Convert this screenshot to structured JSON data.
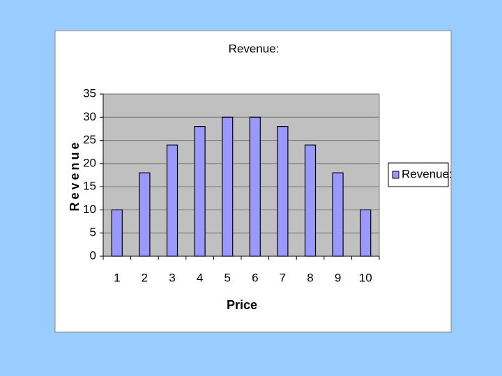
{
  "chart_data": {
    "type": "bar",
    "title": "Revenue:",
    "x_label": "Price",
    "y_label": "Revenue",
    "categories": [
      "1",
      "2",
      "3",
      "4",
      "5",
      "6",
      "7",
      "8",
      "9",
      "10"
    ],
    "series": [
      {
        "name": "Revenue:",
        "color": "#9999ff",
        "values": [
          10,
          18,
          24,
          28,
          30,
          30,
          28,
          24,
          18,
          10
        ]
      }
    ],
    "ylim": [
      0,
      35
    ],
    "yticks": [
      0,
      5,
      10,
      15,
      20,
      25,
      30,
      35
    ],
    "grid": true,
    "legend": "right"
  }
}
